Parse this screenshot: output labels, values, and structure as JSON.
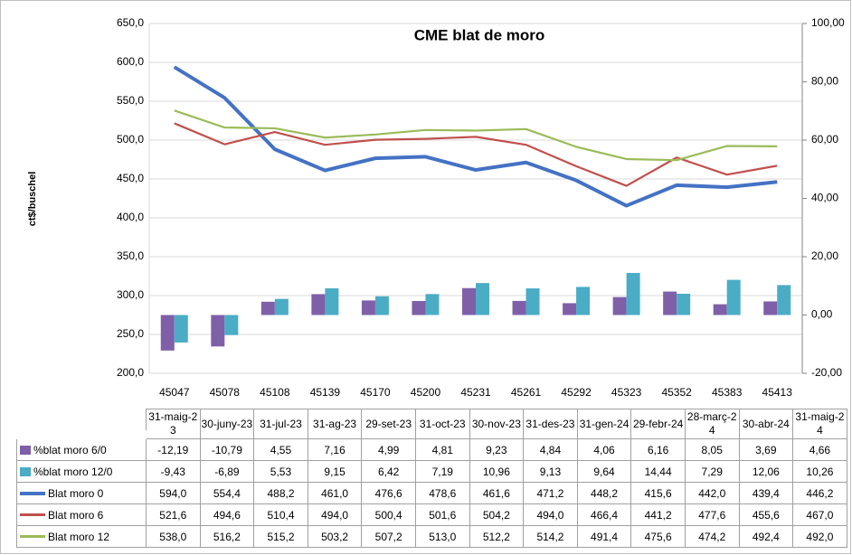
{
  "chart_data": {
    "type": "combo",
    "title": "CME blat de moro",
    "y_label": "ct$/buschel",
    "categories": [
      "45047",
      "45078",
      "45108",
      "45139",
      "45170",
      "45200",
      "45231",
      "45261",
      "45292",
      "45323",
      "45352",
      "45383",
      "45413"
    ],
    "date_labels": [
      "31-maig-23",
      "30-juny-23",
      "31-jul-23",
      "31-ag-23",
      "29-set-23",
      "31-oct-23",
      "30-nov-23",
      "31-des-23",
      "31-gen-24",
      "29-febr-24",
      "28-març-24",
      "30-abr-24",
      "31-maig-24"
    ],
    "series": [
      {
        "name": "%blat moro 6/0",
        "type": "bar",
        "axis": "y2",
        "color": "#7f60a8",
        "values": [
          -12.19,
          -10.79,
          4.55,
          7.16,
          4.99,
          4.81,
          9.23,
          4.84,
          4.06,
          6.16,
          8.05,
          3.69,
          4.66
        ],
        "value_labels": [
          "-12,19",
          "-10,79",
          "4,55",
          "7,16",
          "4,99",
          "4,81",
          "9,23",
          "4,84",
          "4,06",
          "6,16",
          "8,05",
          "3,69",
          "4,66"
        ]
      },
      {
        "name": "%blat moro 12/0",
        "type": "bar",
        "axis": "y2",
        "color": "#4bacc6",
        "values": [
          -9.43,
          -6.89,
          5.53,
          9.15,
          6.42,
          7.19,
          10.96,
          9.13,
          9.64,
          14.44,
          7.29,
          12.06,
          10.26
        ],
        "value_labels": [
          "-9,43",
          "-6,89",
          "5,53",
          "9,15",
          "6,42",
          "7,19",
          "10,96",
          "9,13",
          "9,64",
          "14,44",
          "7,29",
          "12,06",
          "10,26"
        ]
      },
      {
        "name": "Blat moro 0",
        "type": "line",
        "color": "#4472c4",
        "width": 4,
        "values": [
          594.0,
          554.4,
          488.2,
          461.0,
          476.6,
          478.6,
          461.6,
          471.2,
          448.2,
          415.6,
          442.0,
          439.4,
          446.2
        ],
        "value_labels": [
          "594,0",
          "554,4",
          "488,2",
          "461,0",
          "476,6",
          "478,6",
          "461,6",
          "471,2",
          "448,2",
          "415,6",
          "442,0",
          "439,4",
          "446,2"
        ]
      },
      {
        "name": "Blat moro 6",
        "type": "line",
        "color": "#c0504d",
        "width": 2.2,
        "values": [
          521.6,
          494.6,
          510.4,
          494.0,
          500.4,
          501.6,
          504.2,
          494.0,
          466.4,
          441.2,
          477.6,
          455.6,
          467.0
        ],
        "value_labels": [
          "521,6",
          "494,6",
          "510,4",
          "494,0",
          "500,4",
          "501,6",
          "504,2",
          "494,0",
          "466,4",
          "441,2",
          "477,6",
          "455,6",
          "467,0"
        ]
      },
      {
        "name": "Blat moro 12",
        "type": "line",
        "color": "#9bbb59",
        "width": 2.2,
        "values": [
          538.0,
          516.2,
          515.2,
          503.2,
          507.2,
          513.0,
          512.2,
          514.2,
          491.4,
          475.6,
          474.2,
          492.4,
          492.0
        ],
        "value_labels": [
          "538,0",
          "516,2",
          "515,2",
          "503,2",
          "507,2",
          "513,0",
          "512,2",
          "514,2",
          "491,4",
          "475,6",
          "474,2",
          "492,4",
          "492,0"
        ]
      }
    ],
    "ylim": [
      200,
      650
    ],
    "yticks": [
      {
        "value": 200,
        "label": "200,0"
      },
      {
        "value": 250,
        "label": "250,0"
      },
      {
        "value": 300,
        "label": "300,0"
      },
      {
        "value": 350,
        "label": "350,0"
      },
      {
        "value": 400,
        "label": "400,0"
      },
      {
        "value": 450,
        "label": "450,0"
      },
      {
        "value": 500,
        "label": "500,0"
      },
      {
        "value": 550,
        "label": "550,0"
      },
      {
        "value": 600,
        "label": "600,0"
      },
      {
        "value": 650,
        "label": "650,0"
      }
    ],
    "y2lim": [
      -20,
      100
    ],
    "y2ticks": [
      {
        "value": -20,
        "label": "-20,00"
      },
      {
        "value": 0,
        "label": "0,00"
      },
      {
        "value": 20,
        "label": "20,00"
      },
      {
        "value": 40,
        "label": "40,00"
      },
      {
        "value": 60,
        "label": "60,00"
      },
      {
        "value": 80,
        "label": "80,00"
      },
      {
        "value": 100,
        "label": "100,00"
      }
    ],
    "grid": true
  }
}
